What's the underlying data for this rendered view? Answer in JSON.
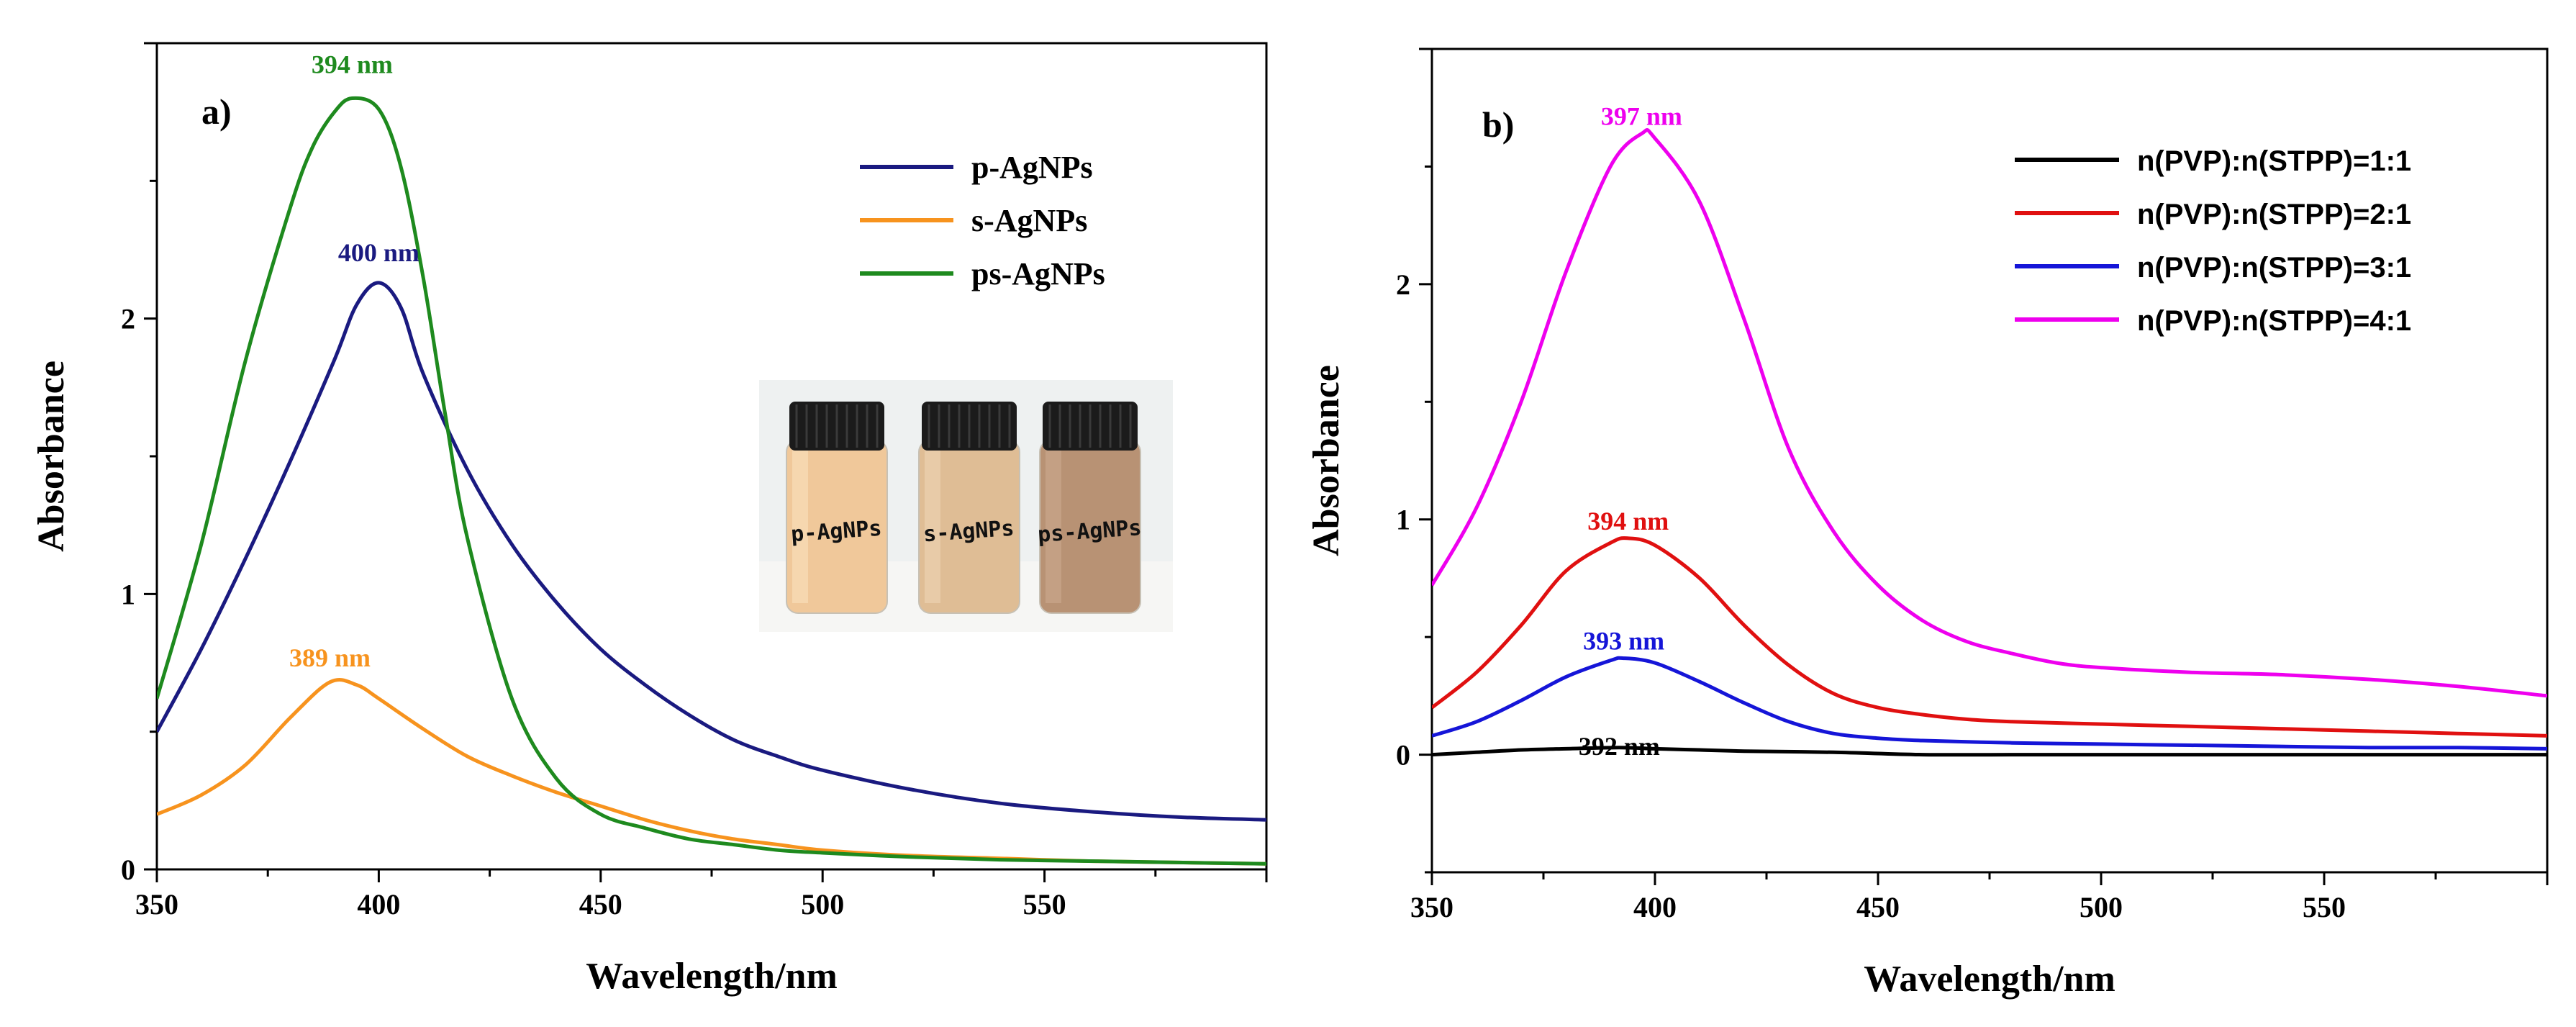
{
  "chart_data": [
    {
      "panel": "a)",
      "type": "line",
      "xlabel": "Wavelength/nm",
      "ylabel": "Absorbance",
      "xlim": [
        350,
        600
      ],
      "ylim": [
        0,
        3.0
      ],
      "x_ticks": [
        350,
        400,
        450,
        500,
        550
      ],
      "y_ticks": [
        0,
        1,
        2
      ],
      "legend_position": "top-right",
      "series": [
        {
          "name": "p-AgNPs",
          "color": "#1a1a80",
          "x": [
            350,
            360,
            370,
            380,
            390,
            395,
            400,
            405,
            410,
            420,
            430,
            440,
            450,
            460,
            470,
            480,
            490,
            500,
            520,
            540,
            560,
            580,
            600
          ],
          "y": [
            0.5,
            0.8,
            1.13,
            1.48,
            1.85,
            2.05,
            2.13,
            2.04,
            1.8,
            1.45,
            1.18,
            0.97,
            0.8,
            0.67,
            0.56,
            0.47,
            0.41,
            0.36,
            0.29,
            0.24,
            0.21,
            0.19,
            0.18
          ]
        },
        {
          "name": "s-AgNPs",
          "color": "#f7931e",
          "x": [
            350,
            360,
            370,
            380,
            389,
            395,
            400,
            410,
            420,
            430,
            440,
            450,
            460,
            470,
            480,
            490,
            500,
            520,
            540,
            560,
            580,
            600
          ],
          "y": [
            0.2,
            0.27,
            0.38,
            0.55,
            0.68,
            0.67,
            0.62,
            0.51,
            0.41,
            0.34,
            0.28,
            0.23,
            0.18,
            0.14,
            0.11,
            0.09,
            0.07,
            0.05,
            0.04,
            0.03,
            0.025,
            0.02
          ]
        },
        {
          "name": "ps-AgNPs",
          "color": "#1e8a1e",
          "x": [
            350,
            360,
            370,
            380,
            385,
            390,
            394,
            400,
            405,
            410,
            415,
            420,
            430,
            440,
            450,
            460,
            470,
            480,
            490,
            500,
            520,
            540,
            560,
            580,
            600
          ],
          "y": [
            0.62,
            1.18,
            1.85,
            2.4,
            2.62,
            2.75,
            2.8,
            2.76,
            2.55,
            2.15,
            1.65,
            1.2,
            0.62,
            0.33,
            0.2,
            0.15,
            0.11,
            0.09,
            0.07,
            0.06,
            0.045,
            0.035,
            0.03,
            0.025,
            0.02
          ]
        }
      ],
      "annotations": [
        {
          "text": "394 nm",
          "x": 394,
          "y": 2.8,
          "color": "#1e8a1e"
        },
        {
          "text": "400 nm",
          "x": 400,
          "y": 2.13,
          "color": "#1a1a80"
        },
        {
          "text": "389 nm",
          "x": 389,
          "y": 0.68,
          "color": "#f7931e"
        }
      ],
      "inset": {
        "vial_labels": [
          "p-AgNPs",
          "s-AgNPs",
          "ps-AgNPs"
        ]
      }
    },
    {
      "panel": "b)",
      "type": "line",
      "xlabel": "Wavelength/nm",
      "ylabel": "Absorbance",
      "xlim": [
        350,
        600
      ],
      "ylim": [
        -0.5,
        3.0
      ],
      "x_ticks": [
        350,
        400,
        450,
        500,
        550
      ],
      "y_ticks": [
        0,
        1,
        2
      ],
      "legend_position": "top-right",
      "series": [
        {
          "name": "n(PVP):n(STPP)=1:1",
          "color": "#000000",
          "x": [
            350,
            360,
            370,
            380,
            392,
            400,
            410,
            420,
            440,
            460,
            480,
            500,
            550,
            600
          ],
          "y": [
            0.0,
            0.01,
            0.02,
            0.025,
            0.03,
            0.025,
            0.02,
            0.015,
            0.01,
            0.0,
            0.0,
            0.0,
            0.0,
            0.0
          ]
        },
        {
          "name": "n(PVP):n(STPP)=2:1",
          "color": "#e01010",
          "x": [
            350,
            360,
            370,
            380,
            390,
            394,
            400,
            410,
            420,
            430,
            440,
            450,
            460,
            470,
            480,
            500,
            520,
            540,
            560,
            580,
            600
          ],
          "y": [
            0.2,
            0.35,
            0.55,
            0.78,
            0.9,
            0.92,
            0.89,
            0.75,
            0.55,
            0.38,
            0.26,
            0.2,
            0.17,
            0.15,
            0.14,
            0.13,
            0.12,
            0.11,
            0.1,
            0.09,
            0.08
          ]
        },
        {
          "name": "n(PVP):n(STPP)=3:1",
          "color": "#1515d8",
          "x": [
            350,
            360,
            370,
            380,
            390,
            393,
            400,
            410,
            420,
            430,
            440,
            450,
            460,
            480,
            500,
            520,
            540,
            560,
            580,
            600
          ],
          "y": [
            0.08,
            0.14,
            0.23,
            0.33,
            0.4,
            0.41,
            0.39,
            0.31,
            0.22,
            0.14,
            0.09,
            0.07,
            0.06,
            0.05,
            0.045,
            0.04,
            0.035,
            0.03,
            0.03,
            0.025
          ]
        },
        {
          "name": "n(PVP):n(STPP)=4:1",
          "color": "#ee00ee",
          "x": [
            350,
            360,
            370,
            380,
            390,
            397,
            400,
            410,
            420,
            430,
            440,
            450,
            460,
            470,
            480,
            490,
            500,
            520,
            540,
            560,
            580,
            600
          ],
          "y": [
            0.72,
            1.05,
            1.5,
            2.05,
            2.5,
            2.64,
            2.62,
            2.35,
            1.85,
            1.3,
            0.95,
            0.72,
            0.57,
            0.48,
            0.43,
            0.39,
            0.37,
            0.35,
            0.34,
            0.32,
            0.29,
            0.25
          ]
        }
      ],
      "annotations": [
        {
          "text": "397 nm",
          "x": 397,
          "y": 2.64,
          "color": "#ee00ee"
        },
        {
          "text": "394 nm",
          "x": 394,
          "y": 0.92,
          "color": "#e01010"
        },
        {
          "text": "393 nm",
          "x": 393,
          "y": 0.41,
          "color": "#1515d8"
        },
        {
          "text": "392 nm",
          "x": 392,
          "y": 0.03,
          "color": "#000000"
        }
      ]
    }
  ]
}
